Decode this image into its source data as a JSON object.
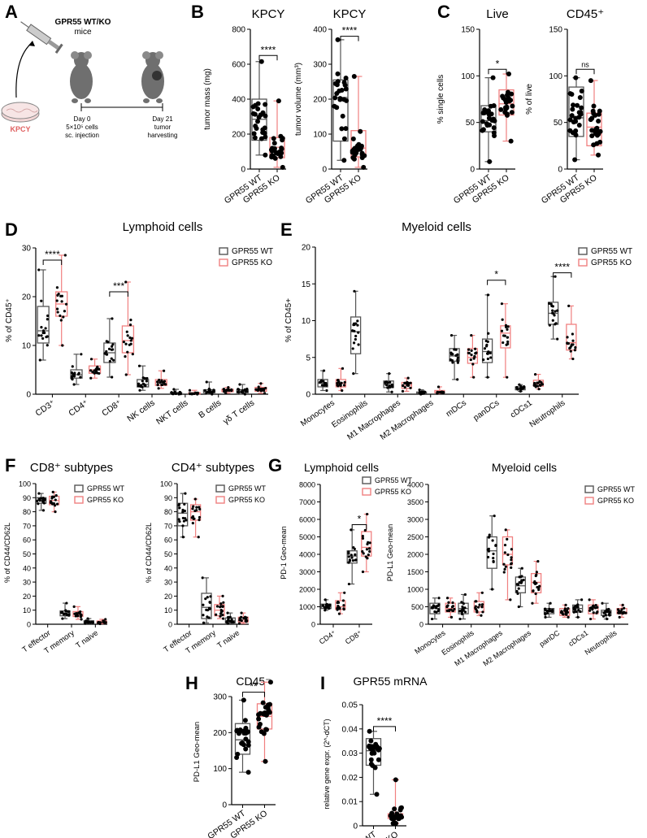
{
  "colors": {
    "wt": "#555555",
    "ko": "#f08080",
    "dot": "#000000",
    "syringe": "#777777",
    "kpcy_text": "#e06060"
  },
  "panelA": {
    "letter": "A",
    "title": "GPR55 WT/KO",
    "subtitle": "mice",
    "cells_label": "KPCY",
    "day0": "Day 0",
    "day0_line2": "5×10⁵ cells",
    "day0_line3": "sc. injection",
    "day21": "Day 21",
    "day21_line2": "tumor",
    "day21_line3": "harvesting"
  },
  "chart_data": [
    {
      "id": "B1",
      "letter": "B",
      "type": "boxplot",
      "title": "KPCY",
      "ylabel": "tumor mass (mg)",
      "ylim": [
        0,
        800
      ],
      "yticks": [
        0,
        200,
        400,
        600,
        800
      ],
      "categories": [
        "GPR55 WT",
        "GPR55 KO"
      ],
      "sig": [
        {
          "label": "****",
          "a": 0,
          "b": 1,
          "y": 650
        }
      ],
      "series": [
        {
          "name": "GPR55 WT",
          "boxes": [
            [
              80,
              165,
              285,
              400,
              615
            ]
          ]
        },
        {
          "name": "GPR55 KO",
          "boxes": [
            [
              10,
              65,
              125,
              180,
              390
            ]
          ]
        }
      ]
    },
    {
      "id": "B2",
      "type": "boxplot",
      "title": "KPCY",
      "ylabel": "tumor volume (mm³)",
      "ylim": [
        0,
        400
      ],
      "yticks": [
        0,
        100,
        200,
        300,
        400
      ],
      "categories": [
        "GPR55 WT",
        "GPR55 KO"
      ],
      "sig": [
        {
          "label": "****",
          "a": 0,
          "b": 1,
          "y": 380
        }
      ],
      "series": [
        {
          "name": "GPR55 WT",
          "boxes": [
            [
              25,
              80,
              205,
              255,
              370
            ]
          ]
        },
        {
          "name": "GPR55 KO",
          "boxes": [
            [
              5,
              35,
              60,
              110,
              265
            ]
          ]
        }
      ]
    },
    {
      "id": "C1",
      "letter": "C",
      "type": "boxplot",
      "title": "Live",
      "ylabel": "% single cells",
      "ylim": [
        0,
        150
      ],
      "yticks": [
        0,
        50,
        100,
        150
      ],
      "categories": [
        "GPR55 WT",
        "GPR55 KO"
      ],
      "sig": [
        {
          "label": "*",
          "a": 0,
          "b": 1,
          "y": 107
        }
      ],
      "series": [
        {
          "name": "GPR55 WT",
          "boxes": [
            [
              8,
              40,
              52,
              68,
              98
            ]
          ]
        },
        {
          "name": "GPR55 KO",
          "boxes": [
            [
              30,
              58,
              70,
              85,
              102
            ]
          ]
        }
      ]
    },
    {
      "id": "C2",
      "type": "boxplot",
      "title": "CD45⁺",
      "ylabel": "% of live",
      "ylim": [
        0,
        150
      ],
      "yticks": [
        0,
        50,
        100,
        150
      ],
      "categories": [
        "GPR55 WT",
        "GPR55 KO"
      ],
      "sig": [
        {
          "label": "ns",
          "a": 0,
          "b": 1,
          "y": 107
        }
      ],
      "series": [
        {
          "name": "GPR55 WT",
          "boxes": [
            [
              10,
              35,
              55,
              88,
              98
            ]
          ]
        },
        {
          "name": "GPR55 KO",
          "boxes": [
            [
              15,
              25,
              45,
              60,
              95
            ]
          ]
        }
      ]
    },
    {
      "id": "D",
      "letter": "D",
      "type": "boxplot",
      "title": "Lymphoid cells",
      "ylabel": "% of CD45⁺",
      "ylim": [
        0,
        30
      ],
      "yticks": [
        0,
        10,
        20,
        30
      ],
      "categories": [
        "CD3⁺",
        "CD4⁺",
        "CD8⁺",
        "NK cells",
        "NKT cells",
        "B cells",
        "γδ T cells"
      ],
      "sig": [
        {
          "label": "****",
          "a": 0,
          "b": 0,
          "y": 27.5
        },
        {
          "label": "***",
          "a": 2,
          "b": 2,
          "y": 21
        }
      ],
      "series": [
        {
          "name": "GPR55 WT",
          "boxes": [
            [
              7,
              10.5,
              13,
              18,
              25.5
            ],
            [
              2,
              3.3,
              4,
              5,
              8.2
            ],
            [
              3.5,
              6.5,
              8.5,
              10.5,
              15.5
            ],
            [
              0.8,
              1.5,
              2,
              3,
              5.8
            ],
            [
              0,
              0.05,
              0.15,
              0.35,
              1
            ],
            [
              0,
              0.3,
              0.6,
              0.9,
              2.5
            ],
            [
              0,
              0.3,
              0.6,
              0.9,
              2
            ]
          ]
        },
        {
          "name": "GPR55 KO",
          "boxes": [
            [
              10,
              16,
              18.5,
              21,
              28.5
            ],
            [
              3.3,
              4.3,
              5,
              5.8,
              7.2
            ],
            [
              4,
              8.5,
              11,
              14,
              23
            ],
            [
              1.2,
              1.8,
              2.5,
              3,
              4.8
            ],
            [
              0,
              0.05,
              0.15,
              0.3,
              0.8
            ],
            [
              0.2,
              0.5,
              0.8,
              1,
              1.4
            ],
            [
              0.2,
              0.6,
              1,
              1.4,
              2.2
            ]
          ]
        }
      ]
    },
    {
      "id": "E",
      "letter": "E",
      "type": "boxplot",
      "title": "Myeloid cells",
      "ylabel": "% of CD45+",
      "ylim": [
        0,
        20
      ],
      "yticks": [
        0,
        5,
        10,
        15,
        20
      ],
      "categories": [
        "Monocytes",
        "Eosinophils",
        "M1 Macrophages",
        "M2 Macrophages",
        "mDCs",
        "panDCs",
        "cDCs1",
        "Neutrophils"
      ],
      "sig": [
        {
          "label": "*",
          "a": 5,
          "b": 5,
          "y": 15.5
        },
        {
          "label": "****",
          "a": 7,
          "b": 7,
          "y": 16.5
        }
      ],
      "series": [
        {
          "name": "GPR55 WT",
          "boxes": [
            [
              0.5,
              1,
              1.5,
              2,
              3.2
            ],
            [
              2.8,
              5.5,
              8.5,
              10.5,
              14
            ],
            [
              0.3,
              0.9,
              1.3,
              1.8,
              2.8
            ],
            [
              0,
              0.1,
              0.2,
              0.3,
              0.6
            ],
            [
              2,
              4.5,
              5.2,
              6.2,
              8
            ],
            [
              2.3,
              4.3,
              5.8,
              7.5,
              13.5
            ],
            [
              0.4,
              0.6,
              0.8,
              1,
              1.3
            ],
            [
              7.5,
              9.5,
              11,
              12.5,
              16
            ]
          ]
        },
        {
          "name": "GPR55 KO",
          "boxes": [
            [
              0.5,
              1,
              1.5,
              2,
              3.5
            ],
            null,
            [
              0.4,
              0.8,
              1.2,
              1.6,
              2.2
            ],
            [
              0.1,
              0.2,
              0.3,
              0.5,
              1
            ],
            [
              2.3,
              4.2,
              5,
              6.2,
              8
            ],
            [
              2.3,
              6.3,
              8.3,
              9.3,
              12.3
            ],
            [
              0.7,
              1.1,
              1.4,
              1.9,
              2.7
            ],
            [
              4.8,
              6,
              7,
              9.5,
              12
            ]
          ]
        }
      ]
    },
    {
      "id": "F1",
      "letter": "F",
      "type": "boxplot",
      "title": "CD8⁺ subtypes",
      "ylabel": "% of CD44/CD62L",
      "ylim": [
        0,
        100
      ],
      "yticks": [
        0,
        10,
        20,
        30,
        40,
        50,
        60,
        70,
        80,
        90,
        100
      ],
      "categories": [
        "T effector",
        "T memory",
        "T naive"
      ],
      "sig": [],
      "series": [
        {
          "name": "GPR55 WT",
          "boxes": [
            [
              81,
              86,
              88,
              90,
              93
            ],
            [
              4,
              6,
              7.5,
              9.5,
              15
            ],
            [
              0.5,
              1,
              1.5,
              2.5,
              4
            ]
          ]
        },
        {
          "name": "GPR55 KO",
          "boxes": [
            [
              80,
              85,
              88,
              91,
              94
            ],
            [
              3.5,
              5.5,
              7,
              9,
              12.5
            ],
            [
              0.3,
              0.8,
              1.5,
              2.3,
              3.5
            ]
          ]
        }
      ]
    },
    {
      "id": "F2",
      "type": "boxplot",
      "title": "CD4⁺ subtypes",
      "ylabel": "% of CD44/CD62L",
      "ylim": [
        0,
        100
      ],
      "yticks": [
        0,
        10,
        20,
        30,
        40,
        50,
        60,
        70,
        80,
        90,
        100
      ],
      "categories": [
        "T effector",
        "T memory",
        "T naive"
      ],
      "sig": [],
      "series": [
        {
          "name": "GPR55 WT",
          "boxes": [
            [
              62,
              70,
              79,
              86,
              93
            ],
            [
              1,
              4,
              12,
              22,
              33
            ],
            [
              0.5,
              1,
              2.5,
              4.5,
              8
            ]
          ]
        },
        {
          "name": "GPR55 KO",
          "boxes": [
            [
              62,
              74,
              80,
              85,
              89
            ],
            [
              4,
              6,
              10,
              14,
              20
            ],
            [
              0.5,
              1.5,
              3,
              5,
              8
            ]
          ]
        }
      ]
    },
    {
      "id": "G1",
      "letter": "G",
      "type": "boxplot",
      "title": "Lymphoid cells",
      "ylabel": "PD-1 Geo-mean",
      "ylim": [
        0,
        8000
      ],
      "yticks": [
        0,
        1000,
        2000,
        3000,
        4000,
        5000,
        6000,
        7000,
        8000
      ],
      "categories": [
        "CD4⁺",
        "CD8⁺"
      ],
      "sig": [
        {
          "label": "*",
          "a": 1,
          "b": 1,
          "y": 5700
        }
      ],
      "series": [
        {
          "name": "GPR55 WT",
          "boxes": [
            [
              800,
              900,
              1000,
              1150,
              1400
            ],
            [
              2300,
              3500,
              3900,
              4200,
              5400
            ]
          ]
        },
        {
          "name": "GPR55 KO",
          "boxes": [
            [
              600,
              850,
              1000,
              1350,
              1800
            ],
            [
              3000,
              3900,
              4400,
              5300,
              6300
            ]
          ]
        }
      ]
    },
    {
      "id": "G2",
      "type": "boxplot",
      "title": "Myeloid cells",
      "ylabel": "PD-L1 Geo-mean",
      "ylim": [
        0,
        4000
      ],
      "yticks": [
        0,
        500,
        1000,
        1500,
        2000,
        2500,
        3000,
        3500,
        4000
      ],
      "categories": [
        "Monocytes",
        "Eosinophils",
        "M1 Macrophages",
        "M2 Macrophages",
        "panDC",
        "cDCs1",
        "Neutrophils"
      ],
      "sig": [],
      "series": [
        {
          "name": "GPR55 WT",
          "boxes": [
            [
              150,
              300,
              450,
              600,
              750
            ],
            [
              150,
              300,
              450,
              600,
              850
            ],
            [
              1000,
              1600,
              2100,
              2500,
              3100
            ],
            [
              500,
              900,
              1100,
              1350,
              1600
            ],
            [
              200,
              300,
              400,
              450,
              600
            ],
            [
              200,
              350,
              450,
              550,
              700
            ],
            [
              150,
              250,
              350,
              400,
              600
            ]
          ]
        },
        {
          "name": "GPR55 KO",
          "boxes": [
            [
              200,
              350,
              450,
              600,
              750
            ],
            [
              250,
              350,
              500,
              650,
              900
            ],
            [
              700,
              1700,
              2000,
              2500,
              2700
            ],
            [
              600,
              900,
              1200,
              1450,
              1800
            ],
            [
              200,
              250,
              350,
              450,
              550
            ],
            [
              150,
              300,
              450,
              550,
              700
            ],
            [
              200,
              300,
              350,
              450,
              550
            ]
          ]
        }
      ]
    },
    {
      "id": "H",
      "letter": "H",
      "type": "boxplot",
      "title": "CD45⁻",
      "ylabel": "PD-L1 Geo-mean",
      "ylim": [
        0,
        300
      ],
      "yticks": [
        0,
        100,
        200,
        300
      ],
      "categories": [
        "GPR55 WT",
        "GPR55 KO"
      ],
      "sig": [
        {
          "label": "**",
          "a": 0,
          "b": 1,
          "y": 312
        }
      ],
      "series": [
        {
          "name": "GPR55 WT",
          "boxes": [
            [
              90,
              140,
              180,
              225,
              290
            ]
          ]
        },
        {
          "name": "GPR55 KO",
          "boxes": [
            [
              120,
              210,
              245,
              280,
              340
            ]
          ]
        }
      ]
    },
    {
      "id": "I",
      "letter": "I",
      "type": "boxplot",
      "title": "GPR55 mRNA",
      "ylabel": "relative gene expr. (2^-dCT)",
      "ylim": [
        0,
        0.05
      ],
      "yticks": [
        0,
        0.01,
        0.02,
        0.03,
        0.04,
        0.05
      ],
      "categories": [
        "GPR55 WT",
        "GPR55 KO"
      ],
      "sig": [
        {
          "label": "****",
          "a": 0,
          "b": 1,
          "y": 0.041
        }
      ],
      "series": [
        {
          "name": "GPR55 WT",
          "boxes": [
            [
              0.013,
              0.025,
              0.031,
              0.036,
              0.039
            ]
          ]
        },
        {
          "name": "GPR55 KO",
          "boxes": [
            [
              0.001,
              0.003,
              0.004,
              0.005,
              0.019
            ]
          ]
        }
      ]
    }
  ],
  "legend": {
    "wt": "GPR55 WT",
    "ko": "GPR55 KO"
  }
}
